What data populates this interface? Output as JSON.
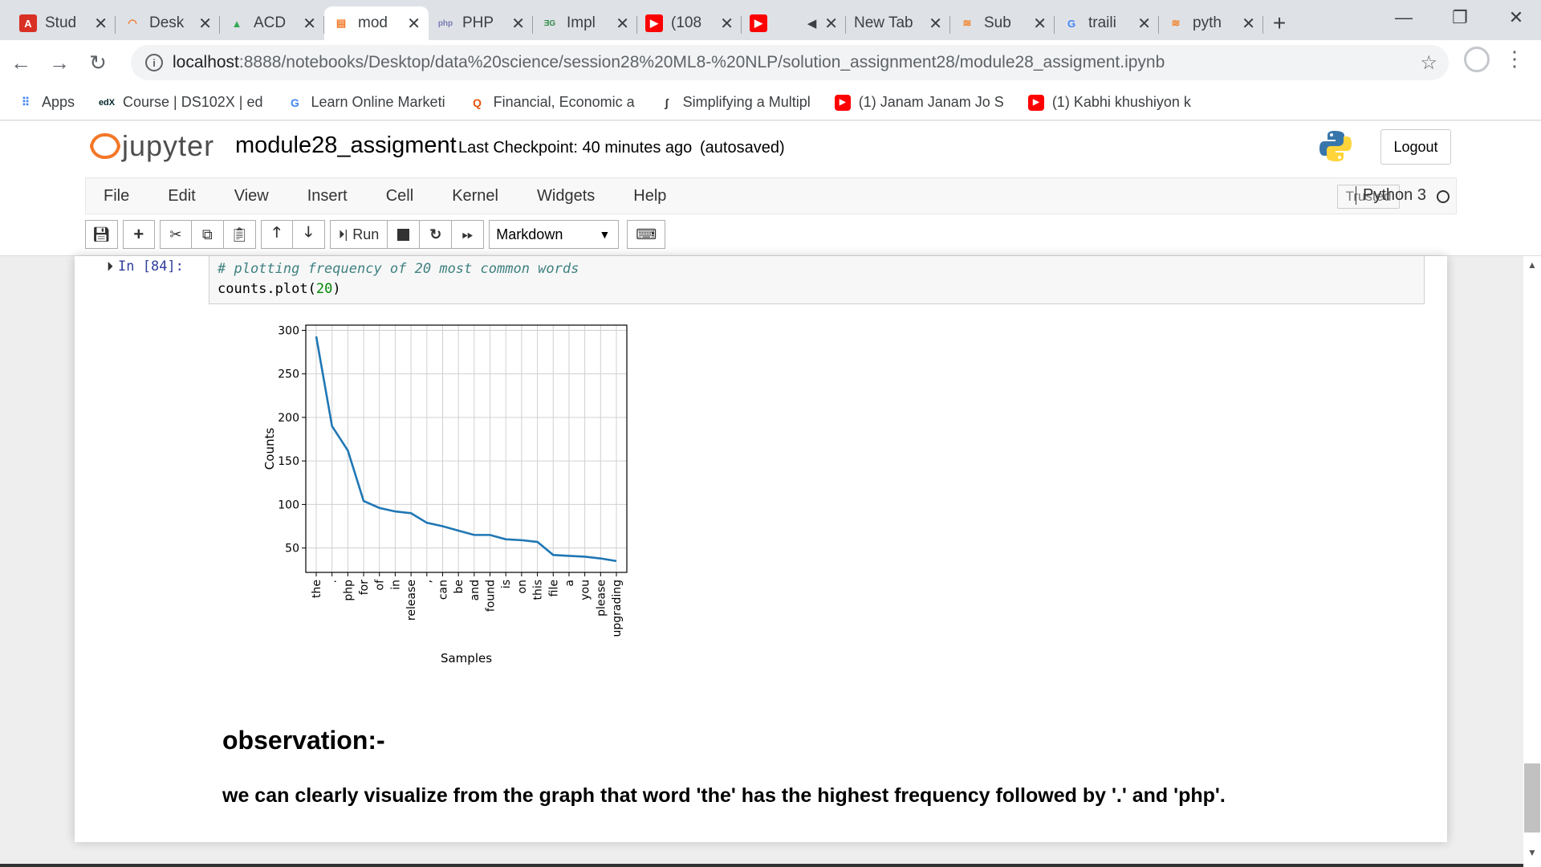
{
  "browser": {
    "tabs": [
      {
        "label": "Stud",
        "icon": "acrobat-icon",
        "color": "#d93025",
        "glyph": "A"
      },
      {
        "label": "Desk",
        "icon": "desk-icon",
        "color": "#f37726",
        "glyph": "◠"
      },
      {
        "label": "ACD",
        "icon": "google-drive-icon",
        "color": "#34a853",
        "glyph": "▲"
      },
      {
        "label": "mod",
        "icon": "jupyter-notebook-icon",
        "color": "#f37726",
        "glyph": "▤",
        "active": true
      },
      {
        "label": "PHP",
        "icon": "php-icon",
        "color": "#777bb3",
        "glyph": "php"
      },
      {
        "label": "Impl",
        "icon": "geeksforgeeks-icon",
        "color": "#2f8d46",
        "glyph": "ƎG"
      },
      {
        "label": "(108",
        "icon": "youtube-icon",
        "color": "#ff0000",
        "glyph": "▶"
      },
      {
        "label": "",
        "icon": "youtube-icon",
        "color": "#ff0000",
        "glyph": "▶",
        "muted": true
      },
      {
        "label": "New Tab",
        "icon": "",
        "color": "",
        "glyph": ""
      },
      {
        "label": "Sub",
        "icon": "stackoverflow-icon",
        "color": "#f48024",
        "glyph": "≋"
      },
      {
        "label": "traili",
        "icon": "google-icon",
        "color": "#4285f4",
        "glyph": "G"
      },
      {
        "label": "pyth",
        "icon": "stackoverflow-icon",
        "color": "#f48024",
        "glyph": "≋"
      }
    ],
    "url_host": "localhost",
    "url_path": ":8888/notebooks/Desktop/data%20science/session28%20ML8-%20NLP/solution_assignment28/module28_assigment.ipynb",
    "bookmarks": [
      {
        "label": "Apps",
        "icon": "apps-grid-icon",
        "color": "#4285f4",
        "glyph": "⠿"
      },
      {
        "label": "Course | DS102X | ed",
        "icon": "edx-icon",
        "color": "#02262b",
        "glyph": "edX"
      },
      {
        "label": "Learn Online Marketi",
        "icon": "google-icon",
        "color": "#4285f4",
        "glyph": "G"
      },
      {
        "label": "Financial, Economic a",
        "icon": "quandl-icon",
        "color": "#e8540d",
        "glyph": "Q"
      },
      {
        "label": "Simplifying a Multipl",
        "icon": "integral-icon",
        "color": "#333333",
        "glyph": "∫"
      },
      {
        "label": "(1) Janam Janam Jo S",
        "icon": "youtube-icon",
        "color": "#ff0000",
        "glyph": "▶"
      },
      {
        "label": "(1) Kabhi khushiyon k",
        "icon": "youtube-icon",
        "color": "#ff0000",
        "glyph": "▶"
      }
    ]
  },
  "jupyter": {
    "logo_text": "jupyter",
    "notebook_name": "module28_assigment",
    "checkpoint": "Last Checkpoint: 40 minutes ago",
    "autosave": "(autosaved)",
    "logout_label": "Logout",
    "menu": [
      "File",
      "Edit",
      "View",
      "Insert",
      "Cell",
      "Kernel",
      "Widgets",
      "Help"
    ],
    "trusted_label": "Trusted",
    "kernel_name": "Python 3",
    "run_label": "Run",
    "cell_type": "Markdown"
  },
  "cell": {
    "prompt": "In [84]:",
    "line1": "# plotting frequency of 20 most common words",
    "line2_prefix": "counts.plot(",
    "line2_num": "20",
    "line2_suffix": ")"
  },
  "chart_data": {
    "type": "line",
    "xlabel": "Samples",
    "ylabel": "Counts",
    "categories": [
      "the",
      ".",
      "php",
      "for",
      "of",
      "in",
      "release",
      ",",
      "can",
      "be",
      "and",
      "found",
      "is",
      "on",
      "this",
      "file",
      "a",
      "you",
      "please",
      "upgrading"
    ],
    "values": [
      293,
      190,
      162,
      104,
      96,
      92,
      90,
      79,
      75,
      70,
      65,
      65,
      60,
      59,
      57,
      42,
      41,
      40,
      38,
      35
    ],
    "yticks": [
      50,
      100,
      150,
      200,
      250,
      300
    ],
    "ylim": [
      22,
      306
    ],
    "grid": true,
    "line_color": "#1f77b4"
  },
  "observation": {
    "title": "observation:-",
    "text": "we can clearly visualize from the graph that word 'the' has the highest frequency followed by '.' and 'php'."
  }
}
